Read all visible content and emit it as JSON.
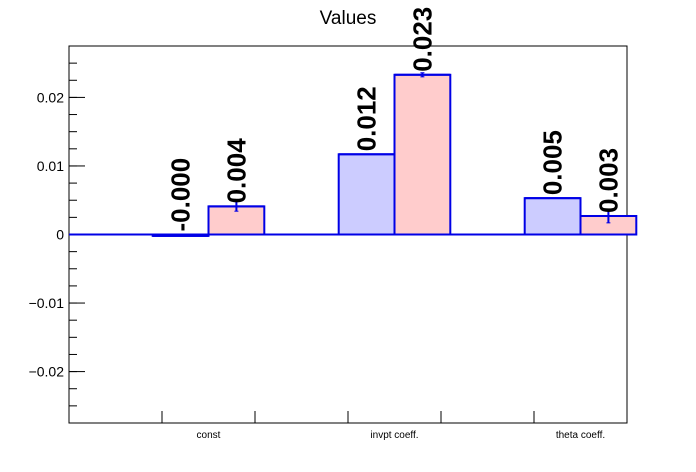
{
  "chart_data": {
    "type": "bar",
    "title": "Values",
    "xlabel": "",
    "ylabel": "",
    "ylim": [
      -0.0275,
      0.0275
    ],
    "yticks": [
      -0.02,
      -0.01,
      0,
      0.01,
      0.02
    ],
    "ytick_labels": [
      "−0.02",
      "−0.01",
      "0",
      "0.01",
      "0.02"
    ],
    "categories": [
      "const",
      "invpt coeff.",
      "theta coeff."
    ],
    "grid": false,
    "legend": "none",
    "series": [
      {
        "fill": "#ccccff",
        "stroke": "#0000e6",
        "values": [
          -0.0002,
          0.0117,
          0.0053
        ],
        "errors": [
          0,
          0,
          0
        ],
        "labels": [
          "-0.000",
          "0.012",
          "0.005"
        ]
      },
      {
        "fill": "#ffcccc",
        "stroke": "#0000e6",
        "values": [
          0.0041,
          0.0233,
          0.0027
        ],
        "errors": [
          0.0007,
          0.0003,
          0.001
        ],
        "labels": [
          "0.004",
          "0.023",
          "0.003"
        ]
      }
    ]
  }
}
